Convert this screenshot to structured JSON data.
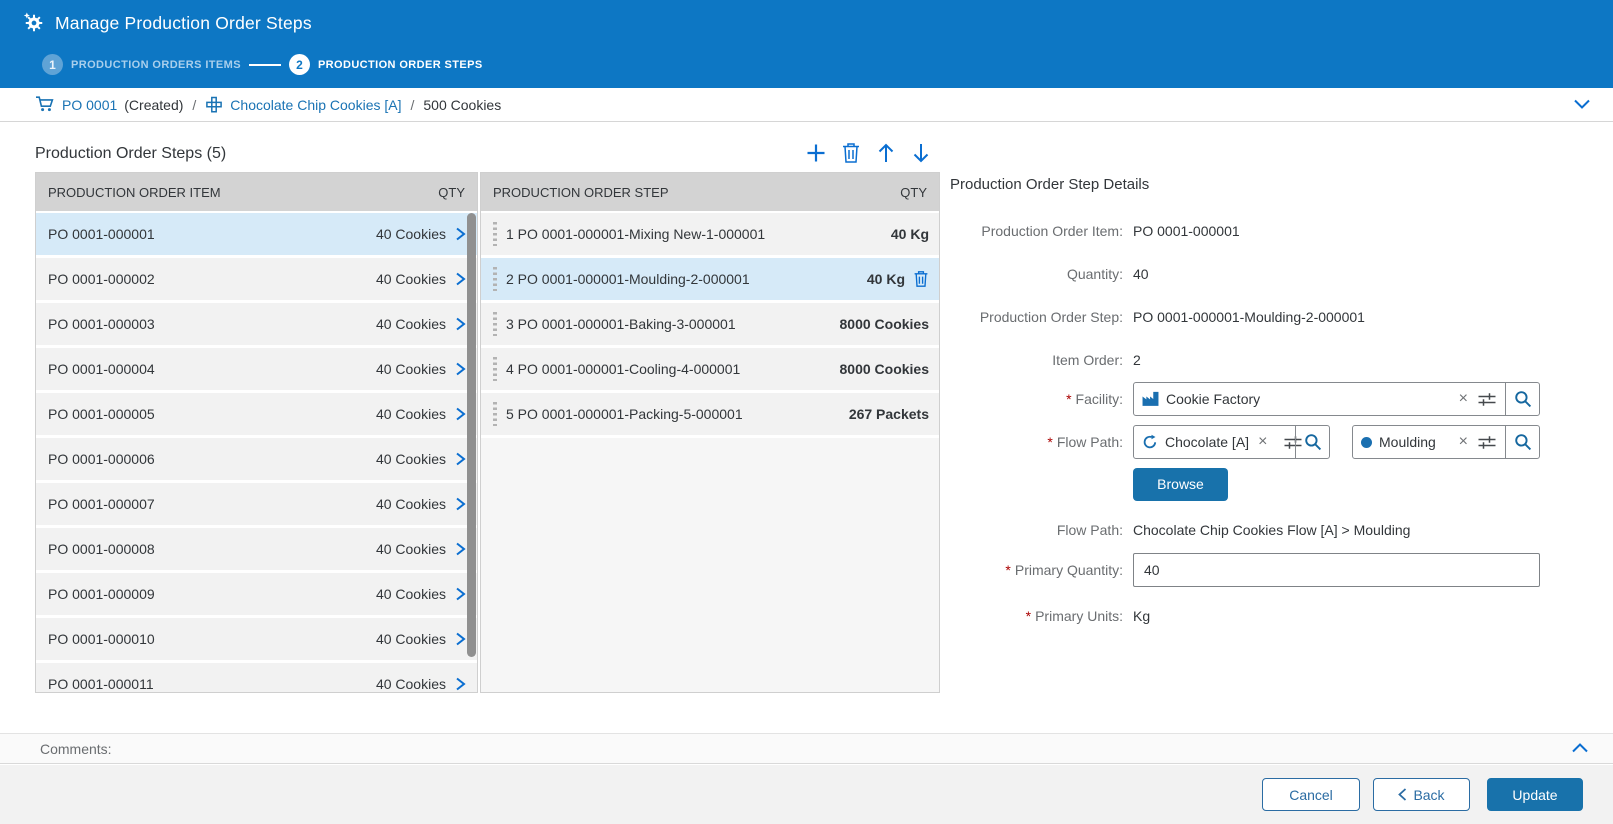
{
  "header": {
    "title": "Manage Production Order Steps",
    "steps": [
      {
        "number": "1",
        "label": "PRODUCTION ORDERS ITEMS",
        "active": false
      },
      {
        "number": "2",
        "label": "PRODUCTION ORDER STEPS",
        "active": true
      }
    ]
  },
  "breadcrumb": {
    "po_link": "PO 0001",
    "po_status": "(Created)",
    "separator": "/",
    "item_link": "Chocolate Chip Cookies [A]",
    "quantity": "500 Cookies"
  },
  "steps_section": {
    "title": "Production Order Steps (5)",
    "toolbar_icons": [
      "add-icon",
      "delete-icon",
      "move-up-icon",
      "move-down-icon"
    ]
  },
  "items_table": {
    "headers": [
      "PRODUCTION ORDER ITEM",
      "QTY"
    ],
    "rows": [
      {
        "id": "PO 0001-000001",
        "qty": "40 Cookies",
        "selected": true
      },
      {
        "id": "PO 0001-000002",
        "qty": "40 Cookies",
        "selected": false
      },
      {
        "id": "PO 0001-000003",
        "qty": "40 Cookies",
        "selected": false
      },
      {
        "id": "PO 0001-000004",
        "qty": "40 Cookies",
        "selected": false
      },
      {
        "id": "PO 0001-000005",
        "qty": "40 Cookies",
        "selected": false
      },
      {
        "id": "PO 0001-000006",
        "qty": "40 Cookies",
        "selected": false
      },
      {
        "id": "PO 0001-000007",
        "qty": "40 Cookies",
        "selected": false
      },
      {
        "id": "PO 0001-000008",
        "qty": "40 Cookies",
        "selected": false
      },
      {
        "id": "PO 0001-000009",
        "qty": "40 Cookies",
        "selected": false
      },
      {
        "id": "PO 0001-000010",
        "qty": "40 Cookies",
        "selected": false
      },
      {
        "id": "PO 0001-000011",
        "qty": "40 Cookies",
        "selected": false
      }
    ]
  },
  "steps_table": {
    "headers": [
      "PRODUCTION ORDER STEP",
      "QTY"
    ],
    "rows": [
      {
        "label": "1 PO 0001-000001-Mixing New-1-000001",
        "qty": "40 Kg",
        "selected": false
      },
      {
        "label": "2 PO 0001-000001-Moulding-2-000001",
        "qty": "40 Kg",
        "selected": true
      },
      {
        "label": "3 PO 0001-000001-Baking-3-000001",
        "qty": "8000 Cookies",
        "selected": false
      },
      {
        "label": "4 PO 0001-000001-Cooling-4-000001",
        "qty": "8000 Cookies",
        "selected": false
      },
      {
        "label": "5 PO 0001-000001-Packing-5-000001",
        "qty": "267 Packets",
        "selected": false
      }
    ]
  },
  "details": {
    "title": "Production Order Step Details",
    "fields": [
      {
        "label": "Production Order Item:",
        "value": "PO 0001-000001"
      },
      {
        "label": "Quantity:",
        "value": "40"
      },
      {
        "label": "Production Order Step:",
        "value": "PO 0001-000001-Moulding-2-000001"
      },
      {
        "label": "Item Order:",
        "value": "2"
      }
    ],
    "facility": {
      "label": "Facility:",
      "required": true,
      "token": "Cookie Factory"
    },
    "flow_path_inputs": {
      "label": "Flow Path:",
      "required": true,
      "token1": "Chocolate  [A]",
      "token2": "Moulding"
    },
    "browse_label": "Browse",
    "flow_path_text": {
      "label": "Flow Path:",
      "value": "Chocolate Chip Cookies Flow [A] > Moulding"
    },
    "primary_quantity": {
      "label": "Primary Quantity:",
      "required": true,
      "value": "40"
    },
    "primary_units": {
      "label": "Primary Units:",
      "required": true,
      "value": "Kg"
    }
  },
  "comments": {
    "label": "Comments:"
  },
  "footer": {
    "cancel": "Cancel",
    "back": "Back",
    "update": "Update"
  },
  "colors": {
    "header_blue": "#0d77c4",
    "accent_blue": "#0a6ed1",
    "link_blue": "#1a73b4",
    "selected_row": "#d6eaf8",
    "row_gray": "#f2f2f2",
    "table_header_gray": "#d3d3d3",
    "button_blue": "#1872ab",
    "required_red": "#aa0000",
    "label_gray": "#6a6d70",
    "text_dark": "#32363a"
  }
}
